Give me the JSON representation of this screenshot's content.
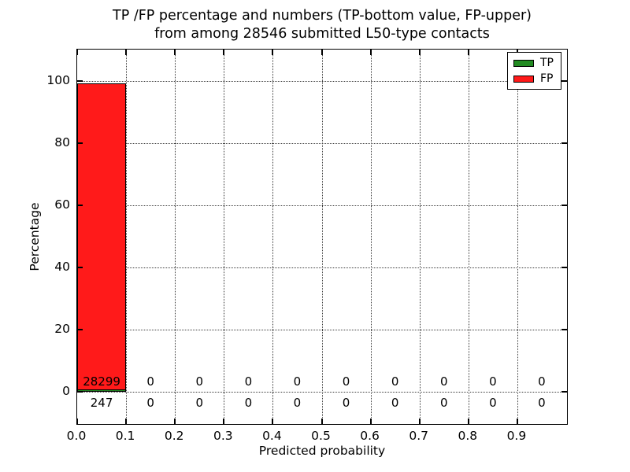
{
  "chart_data": {
    "type": "bar",
    "title": "TP /FP percentage and numbers (TP-bottom value, FP-upper)",
    "subtitle": "from among 28546 submitted L50-type contacts",
    "xlabel": "Predicted probability",
    "ylabel": "Percentage",
    "total_submitted": 28546,
    "xlim": [
      0,
      1.0
    ],
    "ylim": [
      -10,
      110
    ],
    "bin_width": 0.1,
    "bin_starts": [
      0.0,
      0.1,
      0.2,
      0.3,
      0.4,
      0.5,
      0.6,
      0.7,
      0.8,
      0.9
    ],
    "series": [
      {
        "name": "TP",
        "color": "#228B22",
        "annotation_row": "bottom",
        "counts": [
          247,
          0,
          0,
          0,
          0,
          0,
          0,
          0,
          0,
          0
        ],
        "percentages": [
          0.87,
          0,
          0,
          0,
          0,
          0,
          0,
          0,
          0,
          0
        ]
      },
      {
        "name": "FP",
        "color": "#ff1a1a",
        "annotation_row": "upper",
        "counts": [
          28299,
          0,
          0,
          0,
          0,
          0,
          0,
          0,
          0,
          0
        ],
        "percentages": [
          99.13,
          0,
          0,
          0,
          0,
          0,
          0,
          0,
          0,
          0
        ]
      }
    ],
    "xticks": [
      0.0,
      0.1,
      0.2,
      0.3,
      0.4,
      0.5,
      0.6,
      0.7,
      0.8,
      0.9
    ],
    "xtick_labels": [
      "0.0",
      "0.1",
      "0.2",
      "0.3",
      "0.4",
      "0.5",
      "0.6",
      "0.7",
      "0.8",
      "0.9"
    ],
    "yticks": [
      0,
      20,
      40,
      60,
      80,
      100
    ],
    "ytick_labels": [
      "0",
      "20",
      "40",
      "60",
      "80",
      "100"
    ],
    "grid": "dotted",
    "legend": {
      "position": "upper-right",
      "entries": [
        {
          "label": "TP",
          "color": "#228B22"
        },
        {
          "label": "FP",
          "color": "#ff1a1a"
        }
      ]
    },
    "colors": {
      "background": "#ffffff",
      "text": "#000000",
      "grid": "#3c3c3c",
      "axis": "#000000"
    }
  }
}
